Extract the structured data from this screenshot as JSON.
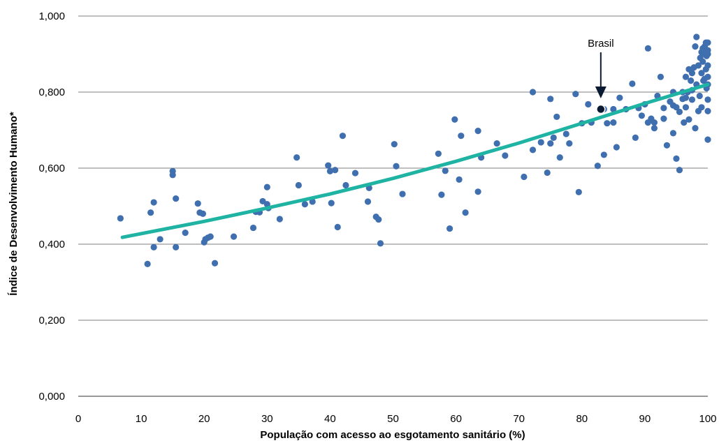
{
  "chart_data": {
    "type": "scatter",
    "xlabel": "População com acesso ao esgotamento sanitário (%)",
    "ylabel": "Índice de Desenvolvimento Humano*",
    "xlim": [
      0,
      100
    ],
    "ylim": [
      0,
      1
    ],
    "x_ticks": [
      "0",
      "10",
      "20",
      "30",
      "40",
      "50",
      "60",
      "70",
      "80",
      "90",
      "100"
    ],
    "y_ticks": [
      "0,000",
      "0,200",
      "0,400",
      "0,600",
      "0,800",
      "1,000"
    ],
    "grid": "horizontal",
    "colors": {
      "points": "#3f6fae",
      "trend": "#1fb3a4",
      "highlight": "#0b1a33",
      "grid": "#7f7f7f"
    },
    "highlight": {
      "label": "Brasil",
      "x": 83,
      "y": 0.755
    },
    "trendline": {
      "x": [
        7,
        20,
        30,
        40,
        50,
        60,
        70,
        80,
        90,
        100
      ],
      "y": [
        0.418,
        0.46,
        0.495,
        0.532,
        0.573,
        0.618,
        0.666,
        0.718,
        0.77,
        0.82
      ]
    },
    "points": [
      [
        6.7,
        0.468
      ],
      [
        11,
        0.348
      ],
      [
        11.5,
        0.483
      ],
      [
        12,
        0.51
      ],
      [
        12,
        0.392
      ],
      [
        13,
        0.413
      ],
      [
        15,
        0.592
      ],
      [
        15,
        0.582
      ],
      [
        15.5,
        0.52
      ],
      [
        15.5,
        0.392
      ],
      [
        17,
        0.43
      ],
      [
        19,
        0.507
      ],
      [
        19.3,
        0.483
      ],
      [
        19.8,
        0.48
      ],
      [
        20,
        0.405
      ],
      [
        20.2,
        0.413
      ],
      [
        20.6,
        0.417
      ],
      [
        21,
        0.42
      ],
      [
        21.7,
        0.35
      ],
      [
        24.7,
        0.42
      ],
      [
        27.8,
        0.443
      ],
      [
        28.2,
        0.485
      ],
      [
        28.8,
        0.484
      ],
      [
        29.3,
        0.513
      ],
      [
        30,
        0.505
      ],
      [
        30,
        0.55
      ],
      [
        30.2,
        0.495
      ],
      [
        32,
        0.466
      ],
      [
        34.7,
        0.628
      ],
      [
        35,
        0.555
      ],
      [
        36,
        0.505
      ],
      [
        37.2,
        0.512
      ],
      [
        39.7,
        0.607
      ],
      [
        40,
        0.592
      ],
      [
        40.2,
        0.508
      ],
      [
        40.8,
        0.595
      ],
      [
        41.2,
        0.445
      ],
      [
        42,
        0.685
      ],
      [
        42.5,
        0.555
      ],
      [
        44,
        0.587
      ],
      [
        46,
        0.512
      ],
      [
        46.2,
        0.548
      ],
      [
        47.3,
        0.472
      ],
      [
        47.7,
        0.465
      ],
      [
        48,
        0.402
      ],
      [
        50.2,
        0.663
      ],
      [
        50.5,
        0.605
      ],
      [
        51.5,
        0.532
      ],
      [
        57.2,
        0.638
      ],
      [
        57.7,
        0.53
      ],
      [
        58.3,
        0.593
      ],
      [
        59,
        0.441
      ],
      [
        59.8,
        0.728
      ],
      [
        60.5,
        0.57
      ],
      [
        60.8,
        0.685
      ],
      [
        61.5,
        0.483
      ],
      [
        63.5,
        0.698
      ],
      [
        63.5,
        0.538
      ],
      [
        64,
        0.628
      ],
      [
        66.5,
        0.665
      ],
      [
        67.8,
        0.633
      ],
      [
        70.8,
        0.577
      ],
      [
        72.2,
        0.8
      ],
      [
        72.2,
        0.648
      ],
      [
        73.5,
        0.668
      ],
      [
        74.5,
        0.588
      ],
      [
        75,
        0.665
      ],
      [
        75,
        0.782
      ],
      [
        76,
        0.735
      ],
      [
        76.5,
        0.628
      ],
      [
        78,
        0.665
      ],
      [
        79,
        0.795
      ],
      [
        79.5,
        0.537
      ],
      [
        80,
        0.718
      ],
      [
        81,
        0.768
      ],
      [
        81.5,
        0.72
      ],
      [
        82.5,
        0.606
      ],
      [
        83.5,
        0.635
      ],
      [
        84,
        0.718
      ],
      [
        85,
        0.755
      ],
      [
        85.5,
        0.655
      ],
      [
        86,
        0.785
      ],
      [
        87,
        0.755
      ],
      [
        88,
        0.822
      ],
      [
        88.5,
        0.68
      ],
      [
        89,
        0.758
      ],
      [
        89.5,
        0.738
      ],
      [
        90,
        0.768
      ],
      [
        90.5,
        0.915
      ],
      [
        90.5,
        0.72
      ],
      [
        91,
        0.73
      ],
      [
        91.5,
        0.72
      ],
      [
        91.5,
        0.705
      ],
      [
        92,
        0.79
      ],
      [
        92.5,
        0.84
      ],
      [
        93,
        0.758
      ],
      [
        93,
        0.73
      ],
      [
        93.5,
        0.66
      ],
      [
        94,
        0.775
      ],
      [
        94.5,
        0.765
      ],
      [
        94.5,
        0.8
      ],
      [
        94.5,
        0.692
      ],
      [
        95,
        0.625
      ],
      [
        95,
        0.76
      ],
      [
        95.5,
        0.595
      ],
      [
        95.5,
        0.748
      ],
      [
        96,
        0.782
      ],
      [
        96,
        0.8
      ],
      [
        96.5,
        0.785
      ],
      [
        96.5,
        0.76
      ],
      [
        96.8,
        0.8
      ],
      [
        97,
        0.728
      ],
      [
        97.3,
        0.83
      ],
      [
        97.5,
        0.85
      ],
      [
        97.5,
        0.78
      ],
      [
        97.8,
        0.865
      ],
      [
        98,
        0.705
      ],
      [
        98,
        0.92
      ],
      [
        98.2,
        0.945
      ],
      [
        98.5,
        0.75
      ],
      [
        98.5,
        0.87
      ],
      [
        98.8,
        0.89
      ],
      [
        99,
        0.85
      ],
      [
        99,
        0.905
      ],
      [
        99.2,
        0.915
      ],
      [
        99.2,
        0.88
      ],
      [
        99.5,
        0.9
      ],
      [
        99.5,
        0.835
      ],
      [
        99.5,
        0.92
      ],
      [
        99.7,
        0.93
      ],
      [
        99.7,
        0.86
      ],
      [
        99.8,
        0.895
      ],
      [
        100,
        0.84
      ],
      [
        100,
        0.91
      ],
      [
        100,
        0.93
      ],
      [
        100,
        0.78
      ],
      [
        100,
        0.675
      ],
      [
        100,
        0.82
      ],
      [
        100,
        0.9
      ],
      [
        100,
        0.87
      ],
      [
        100,
        0.75
      ],
      [
        99.8,
        0.81
      ],
      [
        98.7,
        0.79
      ],
      [
        99,
        0.76
      ],
      [
        99.3,
        0.83
      ],
      [
        98.2,
        0.82
      ],
      [
        97,
        0.86
      ],
      [
        96.5,
        0.84
      ],
      [
        97.5,
        0.805
      ],
      [
        96.2,
        0.72
      ],
      [
        75.5,
        0.68
      ],
      [
        77.5,
        0.69
      ],
      [
        85,
        0.72
      ],
      [
        83.5,
        0.755
      ]
    ]
  }
}
